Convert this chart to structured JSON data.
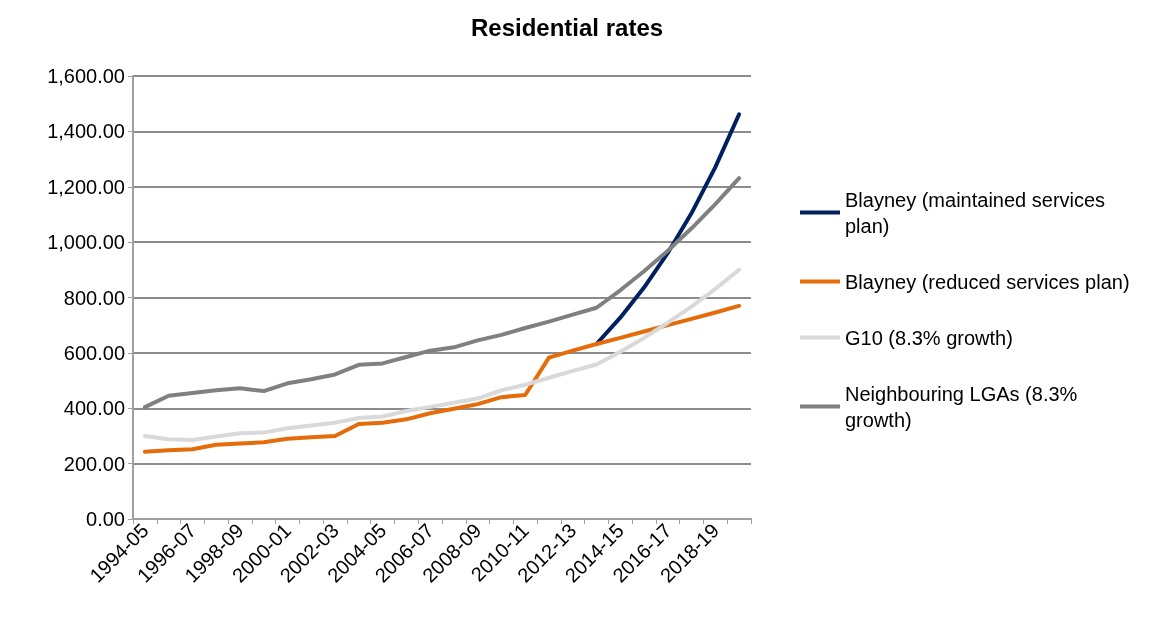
{
  "chart_data": {
    "type": "line",
    "title": "Residential rates",
    "categories": [
      "1994-05",
      null,
      "1996-07",
      null,
      "1998-09",
      null,
      "2000-01",
      null,
      "2002-03",
      null,
      "2004-05",
      null,
      "2006-07",
      null,
      "2008-09",
      null,
      "2010-11",
      null,
      "2012-13",
      null,
      "2014-15",
      null,
      "2016-17",
      null,
      "2018-19",
      null
    ],
    "series": [
      {
        "name": "Blayney (maintained services plan)",
        "color": "#002060",
        "values": [
          null,
          null,
          null,
          null,
          null,
          null,
          null,
          null,
          null,
          null,
          null,
          null,
          null,
          null,
          null,
          null,
          null,
          null,
          null,
          632,
          727,
          836,
          961,
          1105,
          1271,
          1462
        ]
      },
      {
        "name": "Blayney (reduced services plan)",
        "color": "#e46c0a",
        "values": [
          243,
          248,
          252,
          268,
          273,
          277,
          290,
          295,
          300,
          343,
          348,
          360,
          382,
          398,
          415,
          440,
          448,
          583,
          608,
          632,
          654,
          677,
          700,
          723,
          746,
          770
        ]
      },
      {
        "name": "G10 (8.3% growth)",
        "color": "#d9d9d9",
        "values": [
          300,
          288,
          285,
          298,
          310,
          312,
          328,
          338,
          348,
          365,
          370,
          390,
          405,
          420,
          435,
          465,
          485,
          510,
          535,
          558,
          604,
          654,
          709,
          767,
          831,
          900
        ]
      },
      {
        "name": "Neighbouring LGAs (8.3% growth)",
        "color": "#808080",
        "values": [
          404,
          445,
          455,
          465,
          472,
          462,
          490,
          505,
          522,
          557,
          562,
          585,
          608,
          620,
          645,
          665,
          690,
          713,
          738,
          763,
          826,
          895,
          969,
          1050,
          1137,
          1231
        ]
      }
    ],
    "ylim": [
      0,
      1600
    ],
    "yticks": [
      {
        "value": 0,
        "label": "0.00"
      },
      {
        "value": 200,
        "label": "200.00"
      },
      {
        "value": 400,
        "label": "400.00"
      },
      {
        "value": 600,
        "label": "600.00"
      },
      {
        "value": 800,
        "label": "800.00"
      },
      {
        "value": 1000,
        "label": "1,000.00"
      },
      {
        "value": 1200,
        "label": "1,200.00"
      },
      {
        "value": 1400,
        "label": "1,400.00"
      },
      {
        "value": 1600,
        "label": "1,600.00"
      }
    ],
    "grid": "y",
    "legend": "right",
    "marker": "none",
    "line_style": "solid"
  }
}
